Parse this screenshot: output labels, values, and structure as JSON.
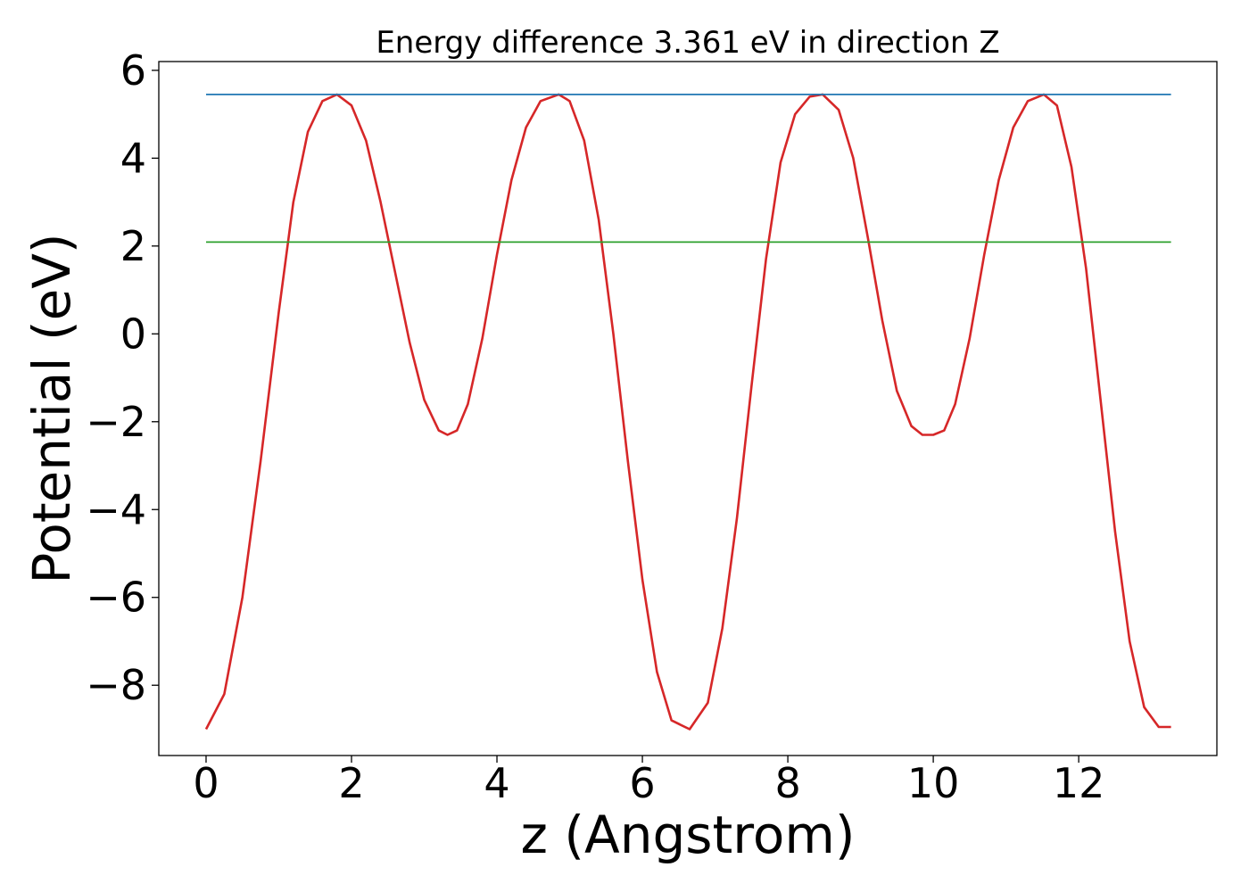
{
  "chart_data": {
    "type": "line",
    "title": "Energy difference 3.361 eV in direction Z",
    "xlabel": "z (Angstrom)",
    "ylabel": "Potential (eV)",
    "xlim": [
      -0.65,
      13.9
    ],
    "ylim": [
      -9.6,
      6.2
    ],
    "xticks": [
      0,
      2,
      4,
      6,
      8,
      10,
      12
    ],
    "xtick_labels": [
      "0",
      "2",
      "4",
      "6",
      "8",
      "10",
      "12"
    ],
    "yticks": [
      6,
      4,
      2,
      0,
      -2,
      -4,
      -6,
      -8
    ],
    "ytick_labels": [
      "6",
      "4",
      "2",
      "0",
      "−2",
      "−4",
      "−6",
      "−8"
    ],
    "grid": false,
    "colors": {
      "potential": "#d62728",
      "upper_level": "#1f77b4",
      "lower_level": "#2ca02c"
    },
    "series": [
      {
        "key": "potential",
        "x": [
          0.0,
          0.25,
          0.5,
          0.75,
          1.0,
          1.2,
          1.4,
          1.6,
          1.8,
          2.0,
          2.2,
          2.4,
          2.6,
          2.8,
          3.0,
          3.2,
          3.32,
          3.45,
          3.6,
          3.8,
          4.0,
          4.2,
          4.4,
          4.6,
          4.85,
          5.0,
          5.2,
          5.4,
          5.6,
          5.8,
          6.0,
          6.2,
          6.4,
          6.65,
          6.9,
          7.1,
          7.3,
          7.5,
          7.7,
          7.9,
          8.1,
          8.3,
          8.48,
          8.7,
          8.9,
          9.1,
          9.3,
          9.5,
          9.7,
          9.85,
          10.0,
          10.15,
          10.3,
          10.5,
          10.7,
          10.9,
          11.1,
          11.3,
          11.52,
          11.7,
          11.9,
          12.1,
          12.3,
          12.5,
          12.7,
          12.9,
          13.1,
          13.27
        ],
        "y": [
          -9.0,
          -8.2,
          -6.0,
          -2.9,
          0.5,
          3.0,
          4.6,
          5.3,
          5.45,
          5.2,
          4.4,
          3.0,
          1.4,
          -0.2,
          -1.5,
          -2.2,
          -2.3,
          -2.2,
          -1.6,
          -0.1,
          1.8,
          3.5,
          4.7,
          5.3,
          5.45,
          5.3,
          4.4,
          2.6,
          0.0,
          -2.9,
          -5.6,
          -7.7,
          -8.8,
          -9.0,
          -8.4,
          -6.7,
          -4.2,
          -1.2,
          1.7,
          3.9,
          5.0,
          5.4,
          5.45,
          5.1,
          4.0,
          2.2,
          0.3,
          -1.3,
          -2.1,
          -2.3,
          -2.3,
          -2.2,
          -1.6,
          -0.1,
          1.8,
          3.5,
          4.7,
          5.3,
          5.45,
          5.2,
          3.8,
          1.5,
          -1.5,
          -4.5,
          -7.0,
          -8.5,
          -8.95,
          -8.95
        ]
      },
      {
        "key": "upper_level",
        "x": [
          0.0,
          13.27
        ],
        "y": [
          5.45,
          5.45
        ]
      },
      {
        "key": "lower_level",
        "x": [
          0.0,
          13.27
        ],
        "y": [
          2.09,
          2.09
        ]
      }
    ]
  }
}
